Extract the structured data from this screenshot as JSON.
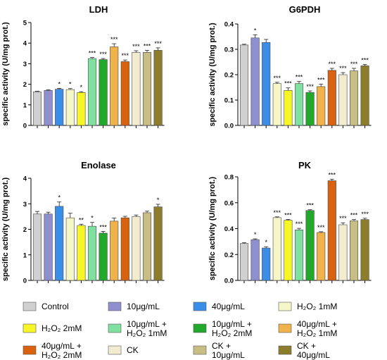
{
  "legend": {
    "items": [
      {
        "label": "Control",
        "color": "#d0d0d0"
      },
      {
        "label": "10μg/mL",
        "color": "#8f8fcf"
      },
      {
        "label": "40μg/mL",
        "color": "#3a8ee8"
      },
      {
        "label": "H₂O₂ 1mM",
        "color": "#f4f6c8"
      },
      {
        "label": "H₂O₂ 2mM",
        "color": "#f6f626"
      },
      {
        "label": "10μg/mL + H₂O₂ 1mM",
        "color": "#7fe0a0"
      },
      {
        "label": "10μg/mL + H₂O₂ 2mM",
        "color": "#22a82a"
      },
      {
        "label": "40μg/mL + H₂O₂ 1mM",
        "color": "#f0b24a"
      },
      {
        "label": "40μg/mL + H₂O₂ 2mM",
        "color": "#d9620e"
      },
      {
        "label": "CK",
        "color": "#f1ecd0"
      },
      {
        "label": "CK + 10μg/mL",
        "color": "#c7be86"
      },
      {
        "label": "CK + 40μg/mL",
        "color": "#8c7d2c"
      }
    ]
  },
  "chart_data": [
    {
      "type": "bar",
      "title": "LDH",
      "ylabel": "specific activity (U/mg prot.)",
      "ylim": [
        0,
        5
      ],
      "yticks": [
        "0",
        "1",
        "2",
        "3",
        "4",
        "5"
      ],
      "values": [
        1.63,
        1.7,
        1.76,
        1.74,
        1.6,
        3.25,
        3.2,
        3.82,
        3.1,
        3.55,
        3.55,
        3.65
      ],
      "errors": [
        0.03,
        0.03,
        0.04,
        0.05,
        0.04,
        0.05,
        0.05,
        0.15,
        0.08,
        0.08,
        0.1,
        0.12
      ],
      "significance": [
        "",
        "",
        "*",
        "*",
        "*",
        "***",
        "***",
        "***",
        "***",
        "***",
        "***",
        "***"
      ]
    },
    {
      "type": "bar",
      "title": "G6PDH",
      "ylabel": "specific activity (U/mg prot.)",
      "ylim": [
        0,
        0.4
      ],
      "yticks": [
        "0.0",
        "0.1",
        "0.2",
        "0.3",
        "0.4"
      ],
      "values": [
        0.317,
        0.345,
        0.327,
        0.165,
        0.138,
        0.165,
        0.13,
        0.153,
        0.217,
        0.2,
        0.215,
        0.235
      ],
      "errors": [
        0.003,
        0.012,
        0.012,
        0.005,
        0.01,
        0.008,
        0.006,
        0.01,
        0.008,
        0.008,
        0.01,
        0.005
      ],
      "significance": [
        "",
        "*",
        "",
        "***",
        "***",
        "***",
        "***",
        "***",
        "***",
        "***",
        "***",
        "***"
      ]
    },
    {
      "type": "bar",
      "title": "Enolase",
      "ylabel": "specific activity (U/mg prot.)",
      "ylim": [
        0,
        4
      ],
      "yticks": [
        "0",
        "1",
        "2",
        "3",
        "4"
      ],
      "values": [
        2.6,
        2.6,
        2.9,
        2.45,
        2.15,
        2.12,
        1.85,
        2.32,
        2.45,
        2.5,
        2.65,
        2.88
      ],
      "errors": [
        0.1,
        0.07,
        0.17,
        0.18,
        0.05,
        0.15,
        0.07,
        0.12,
        0.06,
        0.06,
        0.06,
        0.1
      ],
      "significance": [
        "",
        "",
        "*",
        "",
        "**",
        "*",
        "***",
        "",
        "",
        "",
        "",
        "*"
      ]
    },
    {
      "type": "bar",
      "title": "PK",
      "ylabel": "specific activity (U/mg prot.)",
      "ylim": [
        0,
        0.8
      ],
      "yticks": [
        "0.0",
        "0.2",
        "0.4",
        "0.6",
        "0.8"
      ],
      "values": [
        0.285,
        0.315,
        0.25,
        0.485,
        0.465,
        0.39,
        0.54,
        0.37,
        0.77,
        0.43,
        0.46,
        0.47
      ],
      "errors": [
        0.006,
        0.006,
        0.01,
        0.006,
        0.006,
        0.012,
        0.006,
        0.006,
        0.012,
        0.015,
        0.01,
        0.01
      ],
      "significance": [
        "",
        "*",
        "*",
        "***",
        "***",
        "***",
        "***",
        "***",
        "***",
        "***",
        "***",
        "***"
      ]
    }
  ]
}
